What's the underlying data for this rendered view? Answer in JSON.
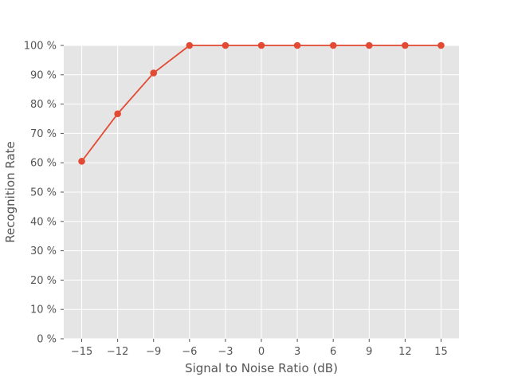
{
  "chart_data": {
    "type": "line",
    "title": "",
    "xlabel": "Signal to Noise Ratio (dB)",
    "ylabel": "Recognition Rate",
    "x": [
      -15,
      -12,
      -9,
      -6,
      -3,
      0,
      3,
      6,
      9,
      12,
      15
    ],
    "x_tick_labels": [
      "−15",
      "−12",
      "−9",
      "−6",
      "−3",
      "0",
      "3",
      "6",
      "9",
      "12",
      "15"
    ],
    "series": [
      {
        "values": [
          60.5,
          76.7,
          90.6,
          100,
          100,
          100,
          100,
          100,
          100,
          100,
          100
        ]
      }
    ],
    "y_ticks": [
      0,
      10,
      20,
      30,
      40,
      50,
      60,
      70,
      80,
      90,
      100
    ],
    "y_tick_labels": [
      "0 %",
      "10 %",
      "20 %",
      "30 %",
      "40 %",
      "50 %",
      "60 %",
      "70 %",
      "80 %",
      "90 %",
      "100 %"
    ],
    "xlim": [
      -16.5,
      16.5
    ],
    "ylim": [
      0,
      100
    ],
    "grid": true,
    "legend": "none",
    "style": "ggplot",
    "colors": {
      "line": "#E24A33",
      "panel": "#E5E5E5",
      "grid": "#FFFFFF",
      "text": "#555555"
    }
  }
}
